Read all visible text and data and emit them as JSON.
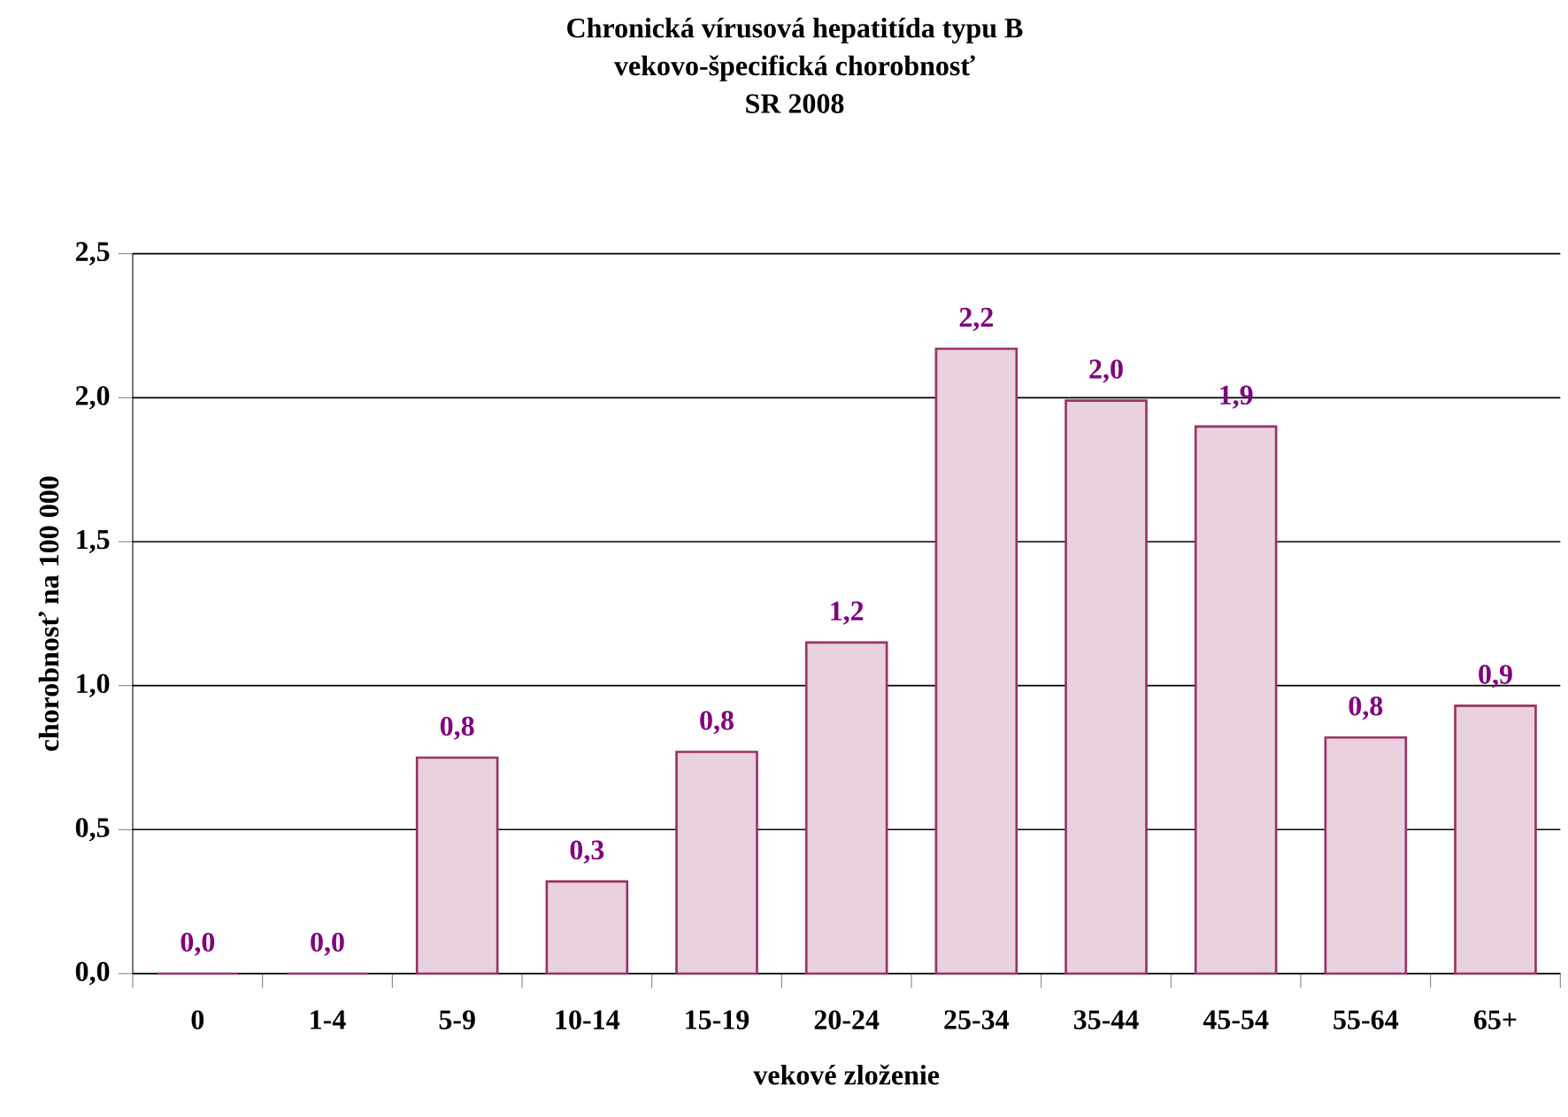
{
  "chart_data": {
    "type": "bar",
    "title": "Chronická vírusová hepatitída typu B\nvekovo-špecifická chorobnosť\nSR 2008",
    "xlabel": "vekové zloženie",
    "ylabel": "chorobnosť na 100 000",
    "categories": [
      "0",
      "1-4",
      "5-9",
      "10-14",
      "15-19",
      "20-24",
      "25-34",
      "35-44",
      "45-54",
      "55-64",
      "65+"
    ],
    "values": [
      0,
      0,
      0.75,
      0.32,
      0.77,
      1.15,
      2.17,
      1.99,
      1.9,
      0.82,
      0.93
    ],
    "value_labels": [
      "0,0",
      "0,0",
      "0,8",
      "0,3",
      "0,8",
      "1,2",
      "2,2",
      "2,0",
      "1,9",
      "0,8",
      "0,9"
    ],
    "color": "#993366",
    "ylim": [
      0,
      2.5
    ],
    "yticks": [
      {
        "value": 0,
        "label": "0,0"
      },
      {
        "value": 0.5,
        "label": "0,5"
      },
      {
        "value": 1,
        "label": "1,0"
      },
      {
        "value": 1.5,
        "label": "1,5"
      },
      {
        "value": 2,
        "label": "2,0"
      },
      {
        "value": 2.5,
        "label": "2,5"
      }
    ],
    "grid": "y"
  }
}
